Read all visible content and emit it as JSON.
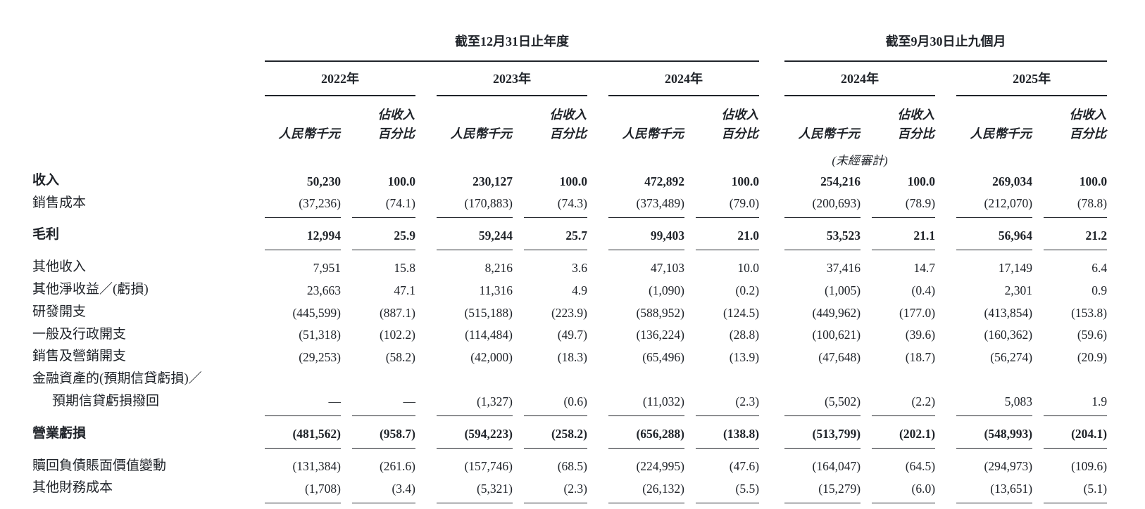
{
  "page": {
    "background": "#ffffff",
    "text_color": "#20242a"
  },
  "header": {
    "period_annual": "截至12月31日止年度",
    "period_interim": "截至9月30日止九個月",
    "years_annual": [
      "2022年",
      "2023年",
      "2024年"
    ],
    "years_interim": [
      "2024年",
      "2025年"
    ],
    "amount_unit_label": "人民幣千元",
    "pct_label_line1": "佔收入",
    "pct_label_line2": "百分比",
    "unaudited_note": "(未經審計)"
  },
  "table": {
    "rows": [
      {
        "label": "收入",
        "bold": true,
        "values": [
          "50,230",
          "100.0",
          "230,127",
          "100.0",
          "472,892",
          "100.0",
          "254,216",
          "100.0",
          "269,034",
          "100.0"
        ]
      },
      {
        "label": "銷售成本",
        "rule_below": true,
        "values": [
          "(37,236)",
          "(74.1)",
          "(170,883)",
          "(74.3)",
          "(373,489)",
          "(79.0)",
          "(200,693)",
          "(78.9)",
          "(212,070)",
          "(78.8)"
        ]
      },
      {
        "label": "毛利",
        "bold": true,
        "gap_above": true,
        "rule_below": true,
        "values": [
          "12,994",
          "25.9",
          "59,244",
          "25.7",
          "99,403",
          "21.0",
          "53,523",
          "21.1",
          "56,964",
          "21.2"
        ]
      },
      {
        "label": "其他收入",
        "gap_above": true,
        "values": [
          "7,951",
          "15.8",
          "8,216",
          "3.6",
          "47,103",
          "10.0",
          "37,416",
          "14.7",
          "17,149",
          "6.4"
        ]
      },
      {
        "label": "其他淨收益／(虧損)",
        "values": [
          "23,663",
          "47.1",
          "11,316",
          "4.9",
          "(1,090)",
          "(0.2)",
          "(1,005)",
          "(0.4)",
          "2,301",
          "0.9"
        ]
      },
      {
        "label": "研發開支",
        "values": [
          "(445,599)",
          "(887.1)",
          "(515,188)",
          "(223.9)",
          "(588,952)",
          "(124.5)",
          "(449,962)",
          "(177.0)",
          "(413,854)",
          "(153.8)"
        ]
      },
      {
        "label": "一般及行政開支",
        "values": [
          "(51,318)",
          "(102.2)",
          "(114,484)",
          "(49.7)",
          "(136,224)",
          "(28.8)",
          "(100,621)",
          "(39.6)",
          "(160,362)",
          "(59.6)"
        ]
      },
      {
        "label": "銷售及營銷開支",
        "values": [
          "(29,253)",
          "(58.2)",
          "(42,000)",
          "(18.3)",
          "(65,496)",
          "(13.9)",
          "(47,648)",
          "(18.7)",
          "(56,274)",
          "(20.9)"
        ]
      },
      {
        "label": "金融資產的(預期信貸虧損)／",
        "values": null
      },
      {
        "label": "預期信貸虧損撥回",
        "indent": true,
        "rule_below": true,
        "values": [
          "—",
          "—",
          "(1,327)",
          "(0.6)",
          "(11,032)",
          "(2.3)",
          "(5,502)",
          "(2.2)",
          "5,083",
          "1.9"
        ]
      },
      {
        "label": "營業虧損",
        "bold": true,
        "gap_above": true,
        "rule_below": true,
        "values": [
          "(481,562)",
          "(958.7)",
          "(594,223)",
          "(258.2)",
          "(656,288)",
          "(138.8)",
          "(513,799)",
          "(202.1)",
          "(548,993)",
          "(204.1)"
        ]
      },
      {
        "label": "贖回負債賬面價值變動",
        "gap_above": true,
        "values": [
          "(131,384)",
          "(261.6)",
          "(157,746)",
          "(68.5)",
          "(224,995)",
          "(47.6)",
          "(164,047)",
          "(64.5)",
          "(294,973)",
          "(109.6)"
        ]
      },
      {
        "label": "其他財務成本",
        "rule_below": true,
        "values": [
          "(1,708)",
          "(3.4)",
          "(5,321)",
          "(2.3)",
          "(26,132)",
          "(5.5)",
          "(15,279)",
          "(6.0)",
          "(13,651)",
          "(5.1)"
        ]
      }
    ]
  }
}
